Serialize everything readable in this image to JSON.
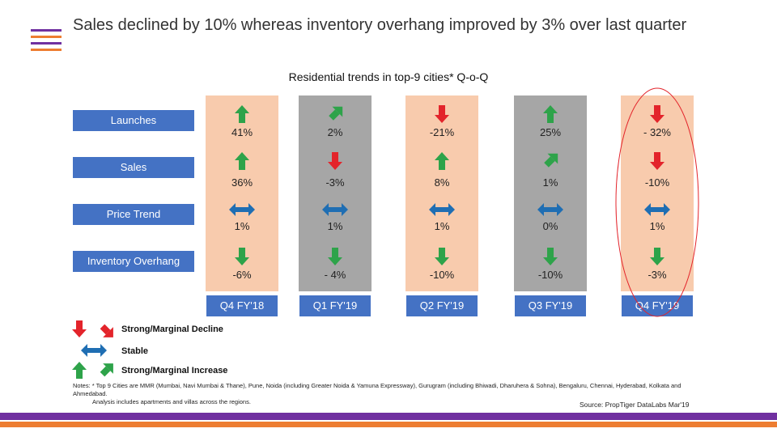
{
  "title": "Sales declined by 10% whereas inventory overhang improved by 3% over last quarter",
  "colors": {
    "row_label_bg": "#4472c4",
    "col_peach": "#f8cbad",
    "col_grey": "#a6a6a6",
    "increase": "#2ea34a",
    "decline": "#e3242b",
    "stable": "#1f6eb3",
    "highlight_oval": "#e3242b",
    "footer_purple": "#7030a0",
    "footer_orange": "#ed7d31"
  },
  "chart_data": {
    "type": "table",
    "title": "Residential trends in top-9 cities* Q-o-Q",
    "rows": [
      "Launches",
      "Sales",
      "Price Trend",
      "Inventory Overhang"
    ],
    "quarters": [
      "Q4 FY'18",
      "Q1 FY'19",
      "Q2 FY'19",
      "Q3 FY'19",
      "Q4 FY'19"
    ],
    "cells": [
      [
        {
          "text": "41%",
          "icon": "up-strong"
        },
        {
          "text": "2%",
          "icon": "up-marginal"
        },
        {
          "text": "-21%",
          "icon": "down-strong"
        },
        {
          "text": "25%",
          "icon": "up-strong"
        },
        {
          "text": "- 32%",
          "icon": "down-strong"
        }
      ],
      [
        {
          "text": "36%",
          "icon": "up-strong"
        },
        {
          "text": "-3%",
          "icon": "down-strong"
        },
        {
          "text": "8%",
          "icon": "up-strong"
        },
        {
          "text": "1%",
          "icon": "up-marginal"
        },
        {
          "text": "-10%",
          "icon": "down-strong"
        }
      ],
      [
        {
          "text": "1%",
          "icon": "stable"
        },
        {
          "text": "1%",
          "icon": "stable"
        },
        {
          "text": "1%",
          "icon": "stable"
        },
        {
          "text": "0%",
          "icon": "stable"
        },
        {
          "text": "1%",
          "icon": "stable"
        }
      ],
      [
        {
          "text": "-6%",
          "icon": "down-green"
        },
        {
          "text": "- 4%",
          "icon": "down-green"
        },
        {
          "text": "-10%",
          "icon": "down-green"
        },
        {
          "text": "-10%",
          "icon": "down-green"
        },
        {
          "text": "-3%",
          "icon": "down-green"
        }
      ]
    ],
    "column_shading": [
      "peach",
      "grey",
      "peach",
      "grey",
      "peach"
    ],
    "highlighted_quarter": "Q4 FY'19"
  },
  "legend": {
    "decline": "Strong/Marginal Decline",
    "stable": "Stable",
    "increase": "Strong/Marginal Increase"
  },
  "notes": {
    "line1": "Notes: * Top 9 Cities are MMR (Mumbai, Navi Mumbai & Thane), Pune, Noida (including Greater Noida & Yamuna Expressway), Gurugram (including Bhiwadi, Dharuhera & Sohna), Bengaluru, Chennai, Hyderabad, Kolkata and Ahmedabad.",
    "line2": "Analysis includes apartments and villas across the regions."
  },
  "source": "Source: PropTiger DataLabs Mar'19"
}
